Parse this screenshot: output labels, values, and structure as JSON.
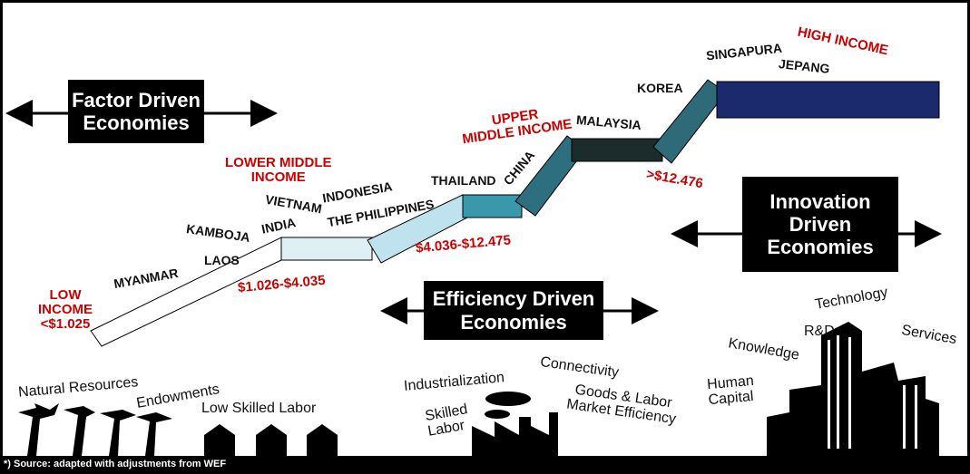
{
  "boxes": {
    "factor": [
      "Factor Driven",
      "Economies"
    ],
    "efficiency": [
      "Efficiency Driven",
      "Economies"
    ],
    "innovation": [
      "Innovation",
      "Driven",
      "Economies"
    ]
  },
  "income_levels": {
    "low": [
      "LOW",
      "INCOME",
      "<$1.025"
    ],
    "lower_middle": [
      "LOWER MIDDLE",
      "INCOME"
    ],
    "upper_middle": [
      "UPPER",
      "MIDDLE INCOME"
    ],
    "high": "HIGH INCOME"
  },
  "ranges": [
    "$1.026-$4.035",
    "$4.036-$12.475",
    ">$12.476"
  ],
  "countries": [
    "MYANMAR",
    "LAOS",
    "KAMBOJA",
    "INDIA",
    "VIETNAM",
    "INDONESIA",
    "THE PHILIPPINES",
    "THAILAND",
    "CHINA",
    "MALAYSIA",
    "KOREA",
    "SINGAPURA",
    "JEPANG"
  ],
  "factors": {
    "natural_resources": "Natural Resources",
    "endowments": "Endowments",
    "low_skilled_labor": "Low Skilled Labor",
    "industrialization": "Industrialization",
    "connectivity": "Connectivity",
    "skilled_labor": [
      "Skilled",
      "Labor"
    ],
    "goods_labor": [
      "Goods & Labor",
      "Market Efficiency"
    ],
    "human_capital": [
      "Human",
      "Capital"
    ],
    "knowledge": "Knowledge",
    "rd": "R&D",
    "technology": "Technology",
    "services": "Services"
  },
  "source": "*) Source:  adapted with adjustments from WEF"
}
